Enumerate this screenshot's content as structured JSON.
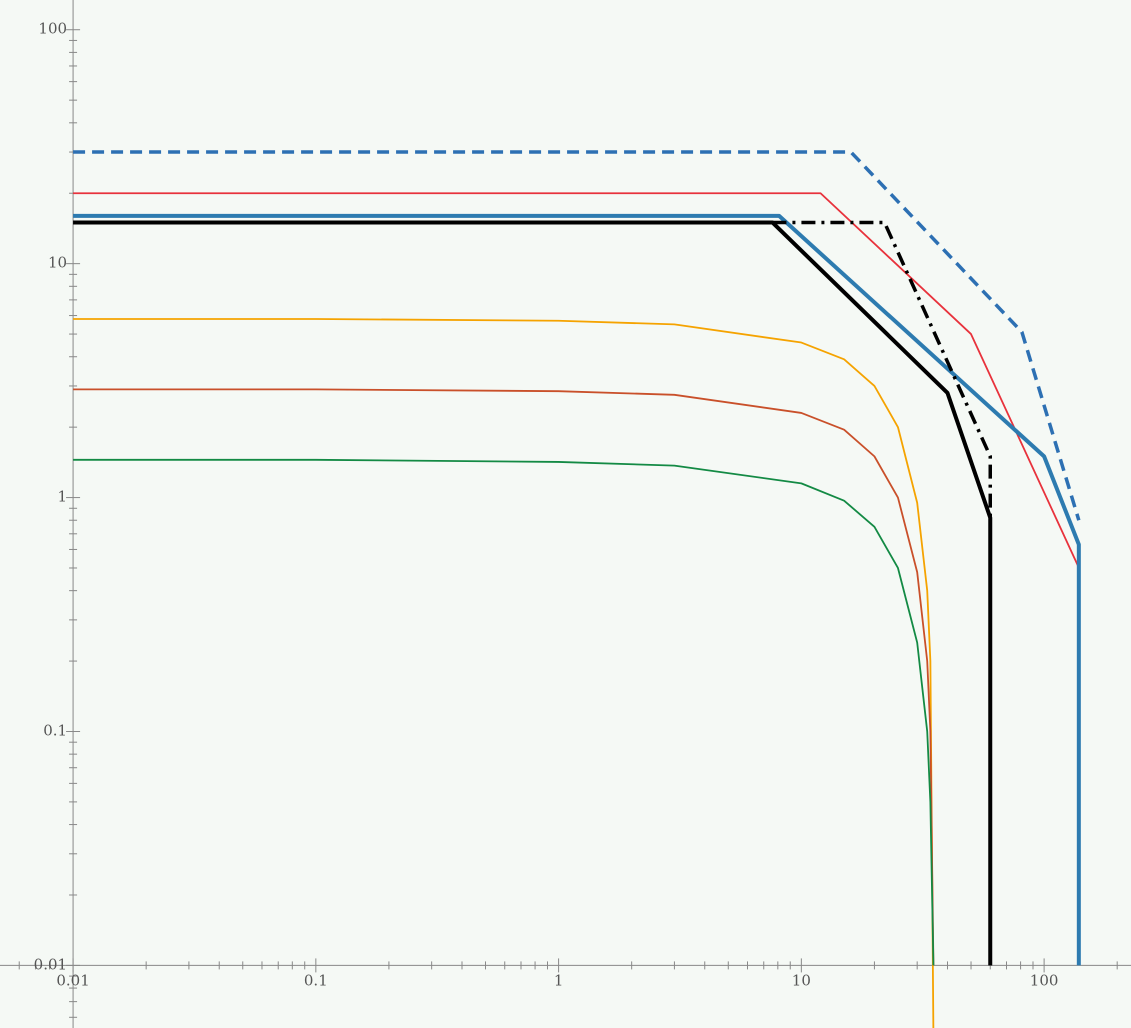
{
  "chart_data": {
    "type": "line",
    "log_x": true,
    "log_y": true,
    "grid": false,
    "background": "#f5f9f5",
    "xlim": [
      0.005,
      228
    ],
    "ylim": [
      0.0054,
      134
    ],
    "xticks": [
      0.01,
      0.1,
      1,
      10,
      100
    ],
    "yticks": [
      0.01,
      0.1,
      1,
      10,
      100
    ],
    "xticks_minor": [
      0.006,
      0.007,
      0.008,
      0.009,
      0.02,
      0.03,
      0.04,
      0.05,
      0.06,
      0.07,
      0.08,
      0.09,
      0.2,
      0.3,
      0.4,
      0.5,
      0.6,
      0.7,
      0.8,
      0.9,
      2,
      3,
      4,
      5,
      6,
      7,
      8,
      9,
      20,
      30,
      40,
      50,
      60,
      70,
      80,
      90,
      200
    ],
    "yticks_minor": [
      0.006,
      0.007,
      0.008,
      0.009,
      0.02,
      0.03,
      0.04,
      0.05,
      0.06,
      0.07,
      0.08,
      0.09,
      0.2,
      0.3,
      0.4,
      0.5,
      0.6,
      0.7,
      0.8,
      0.9,
      2,
      3,
      4,
      5,
      6,
      7,
      8,
      9,
      20,
      30,
      40,
      50,
      60,
      70,
      80,
      90
    ],
    "series": [
      {
        "color": "#2d70b3",
        "style": "dashed",
        "width": 3.5,
        "x": [
          0.01,
          16,
          81,
          139
        ],
        "values": [
          30,
          30,
          5.1,
          0.8
        ]
      },
      {
        "color": "#e8323c",
        "style": "solid",
        "width": 1.8,
        "x": [
          0.01,
          12,
          50,
          138
        ],
        "values": [
          20,
          20,
          5,
          0.51
        ]
      },
      {
        "color": "#2d7bb0",
        "style": "solid",
        "width": 4,
        "x": [
          0.01,
          8.1,
          100,
          139,
          139
        ],
        "values": [
          16,
          16,
          1.5,
          0.63,
          0.01
        ]
      },
      {
        "color": "#000000",
        "style": "solid",
        "width": 4,
        "x": [
          0.01,
          7.6,
          40,
          60,
          60
        ],
        "values": [
          15,
          15,
          2.8,
          0.82,
          0.01
        ]
      },
      {
        "color": "#000000",
        "style": "dashdot",
        "width": 3.5,
        "x": [
          7.6,
          22,
          60,
          60
        ],
        "values": [
          15,
          15,
          1.5,
          0.01
        ]
      },
      {
        "color": "#f5a300",
        "style": "solid",
        "width": 1.8,
        "x": [
          0.01,
          0.1,
          1,
          3,
          10,
          15,
          20,
          25,
          30,
          33,
          34,
          35
        ],
        "values": [
          5.8,
          5.8,
          5.7,
          5.5,
          4.6,
          3.9,
          3.0,
          2.0,
          0.95,
          0.4,
          0.2,
          0.005
        ]
      },
      {
        "color": "#c9502a",
        "style": "solid",
        "width": 1.8,
        "x": [
          0.01,
          0.1,
          1,
          3,
          10,
          15,
          20,
          25,
          30,
          33,
          34,
          35
        ],
        "values": [
          2.9,
          2.9,
          2.85,
          2.75,
          2.3,
          1.95,
          1.5,
          1.0,
          0.48,
          0.2,
          0.1,
          0.01
        ]
      },
      {
        "color": "#138a44",
        "style": "solid",
        "width": 1.8,
        "x": [
          0.01,
          0.1,
          1,
          3,
          10,
          15,
          20,
          25,
          30,
          33,
          34,
          35
        ],
        "values": [
          1.45,
          1.45,
          1.42,
          1.37,
          1.15,
          0.97,
          0.75,
          0.5,
          0.24,
          0.1,
          0.05,
          0.01
        ]
      }
    ]
  }
}
